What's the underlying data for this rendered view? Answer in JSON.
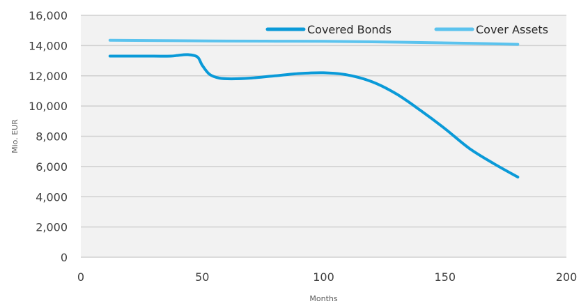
{
  "chart_data": {
    "type": "line",
    "title": "",
    "xlabel": "Months",
    "ylabel": "Mio. EUR",
    "xlim": [
      0,
      200
    ],
    "ylim": [
      0,
      16000
    ],
    "x_ticks": [
      "0",
      "50",
      "100",
      "150",
      "200"
    ],
    "y_ticks": [
      "0",
      "2,000",
      "4,000",
      "6,000",
      "8,000",
      "10,000",
      "12,000",
      "14,000",
      "16,000"
    ],
    "grid": "horizontal",
    "legend_position": "top-right",
    "series": [
      {
        "name": "Covered Bonds",
        "color": "#0a9ad8",
        "x": [
          12,
          20,
          30,
          37,
          40,
          44,
          48,
          50,
          53,
          57,
          62,
          70,
          80,
          90,
          100,
          110,
          120,
          130,
          140,
          150,
          160,
          170,
          180
        ],
        "y": [
          13300,
          13300,
          13300,
          13300,
          13350,
          13400,
          13250,
          12700,
          12100,
          11850,
          11800,
          11850,
          12000,
          12150,
          12200,
          12050,
          11600,
          10800,
          9700,
          8500,
          7200,
          6200,
          5300
        ]
      },
      {
        "name": "Cover Assets",
        "color": "#5bc3ee",
        "x": [
          12,
          40,
          60,
          80,
          100,
          120,
          140,
          160,
          180
        ],
        "y": [
          14350,
          14320,
          14300,
          14290,
          14280,
          14250,
          14200,
          14150,
          14080
        ]
      }
    ]
  }
}
